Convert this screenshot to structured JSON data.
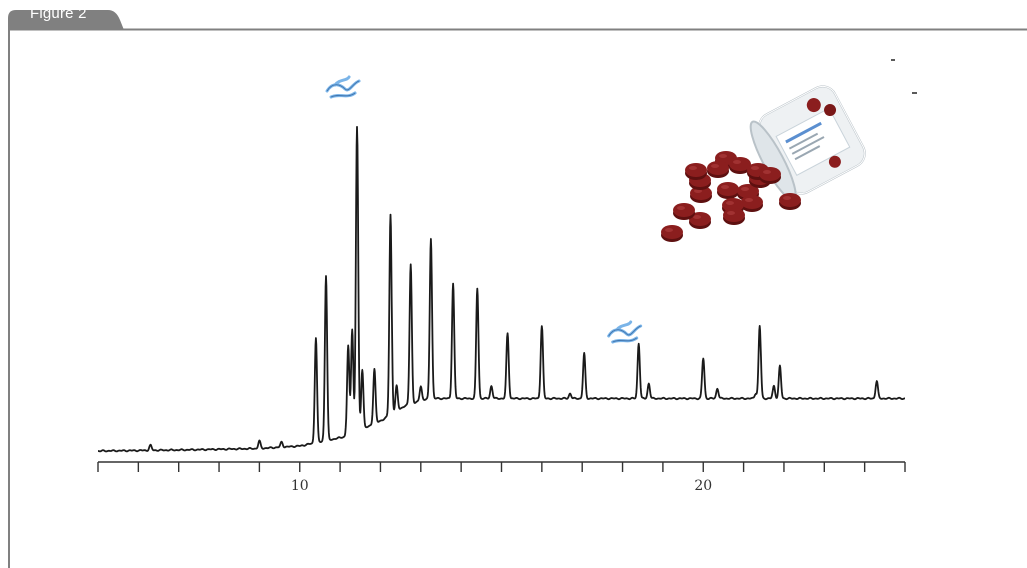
{
  "figure": {
    "tab_label": "Figure 2"
  },
  "colors": {
    "frame": "#808080",
    "trace": "#1a1a1a",
    "pill": "#8b1e1e",
    "annotation_marker": "#7ab4e8"
  },
  "chart_data": {
    "type": "line",
    "title": "",
    "xlabel": "",
    "ylabel": "",
    "xlim": [
      5,
      25
    ],
    "x_tick_labels": [
      "10",
      "20"
    ],
    "x_tick_values": [
      10,
      20
    ],
    "minor_tick_step": 1,
    "baseline": [
      {
        "x": 5.0,
        "y": 0.0
      },
      {
        "x": 7.0,
        "y": 0.2
      },
      {
        "x": 9.0,
        "y": 0.5
      },
      {
        "x": 10.0,
        "y": 1.0
      },
      {
        "x": 10.5,
        "y": 1.8
      },
      {
        "x": 11.2,
        "y": 3.0
      },
      {
        "x": 12.0,
        "y": 6.0
      },
      {
        "x": 12.6,
        "y": 9.0
      },
      {
        "x": 13.2,
        "y": 10.5
      },
      {
        "x": 25.0,
        "y": 10.5
      }
    ],
    "peaks": [
      {
        "x": 6.3,
        "height": 1.0
      },
      {
        "x": 9.0,
        "height": 1.5
      },
      {
        "x": 9.55,
        "height": 1.0
      },
      {
        "x": 10.4,
        "height": 21.0
      },
      {
        "x": 10.65,
        "height": 33.0
      },
      {
        "x": 11.2,
        "height": 18.0
      },
      {
        "x": 11.3,
        "height": 21.0
      },
      {
        "x": 11.42,
        "height": 61.0
      },
      {
        "x": 11.55,
        "height": 12.0
      },
      {
        "x": 11.85,
        "height": 11.0
      },
      {
        "x": 12.25,
        "height": 40.0
      },
      {
        "x": 12.4,
        "height": 5.0
      },
      {
        "x": 12.75,
        "height": 28.0
      },
      {
        "x": 13.0,
        "height": 3.0
      },
      {
        "x": 13.25,
        "height": 32.0
      },
      {
        "x": 13.8,
        "height": 23.0
      },
      {
        "x": 14.4,
        "height": 22.0
      },
      {
        "x": 14.75,
        "height": 2.5
      },
      {
        "x": 15.15,
        "height": 13.0
      },
      {
        "x": 16.0,
        "height": 14.5
      },
      {
        "x": 16.7,
        "height": 1.0
      },
      {
        "x": 17.05,
        "height": 9.0
      },
      {
        "x": 18.4,
        "height": 11.0
      },
      {
        "x": 18.65,
        "height": 3.0
      },
      {
        "x": 20.0,
        "height": 8.0
      },
      {
        "x": 20.35,
        "height": 2.0
      },
      {
        "x": 21.3,
        "height": 1.0
      },
      {
        "x": 21.4,
        "height": 14.5
      },
      {
        "x": 21.75,
        "height": 2.5
      },
      {
        "x": 21.9,
        "height": 6.5
      },
      {
        "x": 24.3,
        "height": 3.5
      }
    ],
    "annotations": [
      {
        "type": "marker",
        "x": 11.42,
        "y": 72.0
      },
      {
        "type": "marker",
        "x": 18.4,
        "y": 23.0
      }
    ],
    "inset_image": "jar-of-red-tablets"
  }
}
